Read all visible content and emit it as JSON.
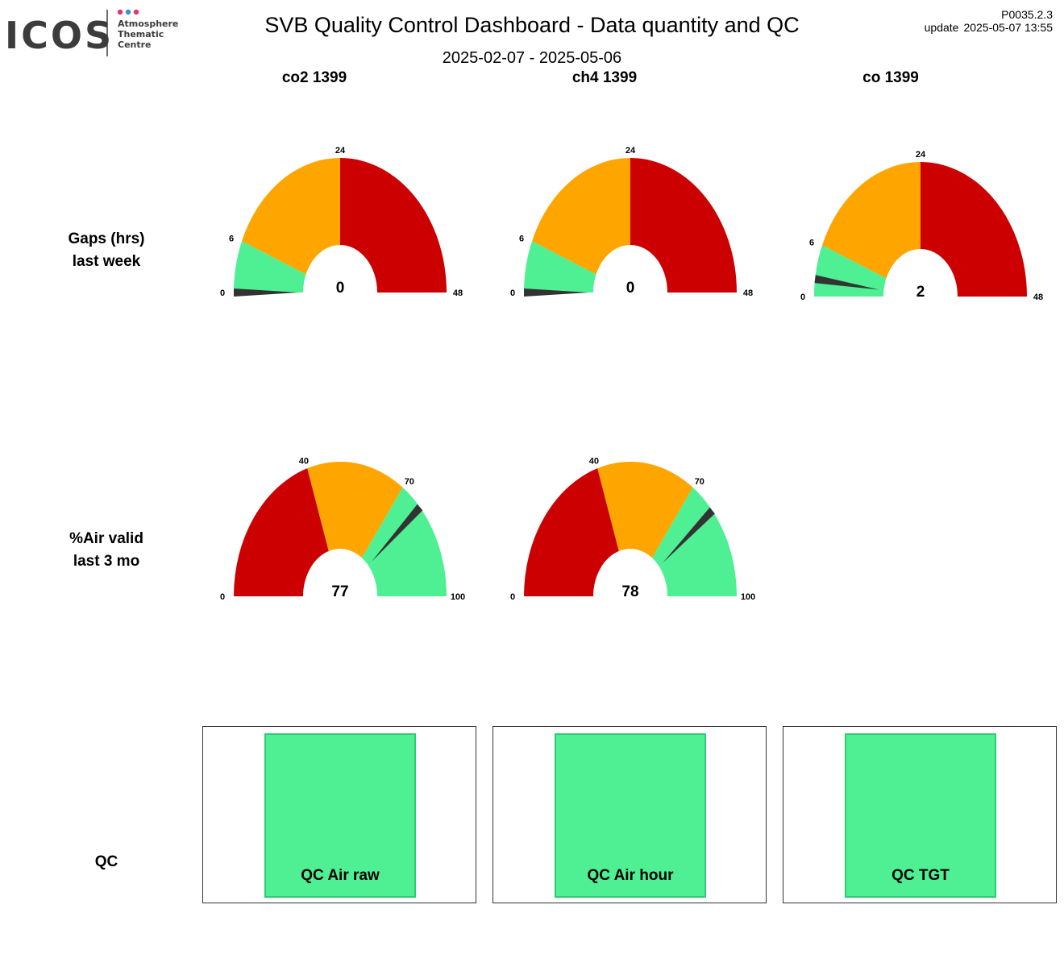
{
  "header": {
    "logo_text": "ICOS",
    "logo_subtitle": [
      "Atmosphere",
      "Thematic",
      "Centre"
    ],
    "title": "SVB  Quality Control Dashboard - Data quantity and QC",
    "date_range": "2025-02-07 - 2025-05-06",
    "version": "P0035.2.3",
    "update_label": "update",
    "update_value": "2025-05-07 13:55"
  },
  "columns": [
    "co2 1399",
    "ch4 1399",
    "co 1399"
  ],
  "rows": {
    "gaps_label": [
      "Gaps (hrs)",
      "last week"
    ],
    "air_label": [
      "%Air valid",
      "last 3 mo"
    ],
    "qc_label": "QC"
  },
  "colors": {
    "red": "#cc0000",
    "orange": "#ffa500",
    "green": "#4ff093",
    "needle": "#333333",
    "logo_dark": "#3c3c3c",
    "logo_dot_pink": "#e6336f",
    "logo_dot_blue": "#3a8fd9"
  },
  "chart_data": [
    {
      "type": "gauge",
      "title": "co2 1399",
      "metric": "Gaps (hrs) last week",
      "min": 0,
      "max": 48,
      "ticks": [
        0,
        6,
        24,
        48
      ],
      "bands": [
        {
          "from": 0,
          "to": 6,
          "color": "green"
        },
        {
          "from": 6,
          "to": 24,
          "color": "orange"
        },
        {
          "from": 24,
          "to": 48,
          "color": "red"
        }
      ],
      "value": 0,
      "value_label": "0"
    },
    {
      "type": "gauge",
      "title": "ch4 1399",
      "metric": "Gaps (hrs) last week",
      "min": 0,
      "max": 48,
      "ticks": [
        0,
        6,
        24,
        48
      ],
      "bands": [
        {
          "from": 0,
          "to": 6,
          "color": "green"
        },
        {
          "from": 6,
          "to": 24,
          "color": "orange"
        },
        {
          "from": 24,
          "to": 48,
          "color": "red"
        }
      ],
      "value": 0,
      "value_label": "0"
    },
    {
      "type": "gauge",
      "title": "co 1399",
      "metric": "Gaps (hrs) last week",
      "min": 0,
      "max": 48,
      "ticks": [
        0,
        6,
        24,
        48
      ],
      "bands": [
        {
          "from": 0,
          "to": 6,
          "color": "green"
        },
        {
          "from": 6,
          "to": 24,
          "color": "orange"
        },
        {
          "from": 24,
          "to": 48,
          "color": "red"
        }
      ],
      "value": 2,
      "value_label": "2"
    },
    {
      "type": "gauge",
      "title": "co2 1399",
      "metric": "%Air valid last 3 mo",
      "min": 0,
      "max": 100,
      "ticks": [
        0,
        40,
        70,
        100
      ],
      "bands": [
        {
          "from": 0,
          "to": 40,
          "color": "red"
        },
        {
          "from": 40,
          "to": 70,
          "color": "orange"
        },
        {
          "from": 70,
          "to": 100,
          "color": "green"
        }
      ],
      "value": 77,
      "value_label": "77"
    },
    {
      "type": "gauge",
      "title": "ch4 1399",
      "metric": "%Air valid last 3 mo",
      "min": 0,
      "max": 100,
      "ticks": [
        0,
        40,
        70,
        100
      ],
      "bands": [
        {
          "from": 0,
          "to": 40,
          "color": "red"
        },
        {
          "from": 40,
          "to": 70,
          "color": "orange"
        },
        {
          "from": 70,
          "to": 100,
          "color": "green"
        }
      ],
      "value": 78,
      "value_label": "78"
    }
  ],
  "qc": [
    {
      "label": "QC Air raw",
      "status": "ok",
      "color": "green"
    },
    {
      "label": "QC Air hour",
      "status": "ok",
      "color": "green"
    },
    {
      "label": "QC TGT",
      "status": "ok",
      "color": "green"
    }
  ]
}
